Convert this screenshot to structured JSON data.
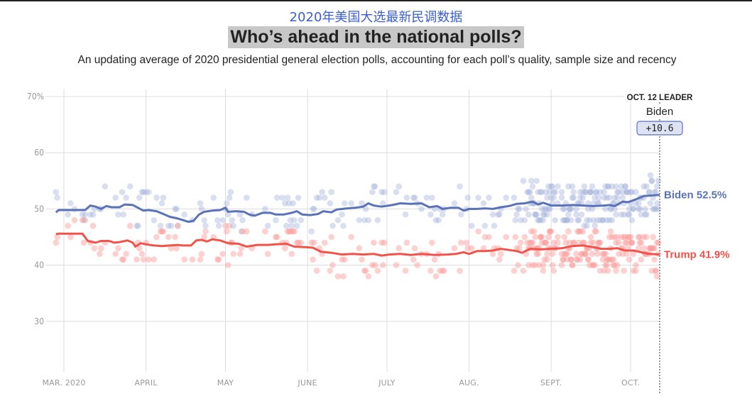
{
  "header": {
    "cn_title": "2020年美国大选最新民调数据",
    "title": "Who’s ahead in the national polls?",
    "subtitle": "An updating average of 2020 presidential general election polls, accounting for each poll’s quality, sample size and recency"
  },
  "colors": {
    "biden": "#5a72b8",
    "biden_dot": "#9fb0d9",
    "trump": "#f2524a",
    "trump_dot": "#fb9a96",
    "grid": "#dcdcdc",
    "cn_title": "#3a5fcd"
  },
  "leader": {
    "heading": "OCT. 12 LEADER",
    "name": "Biden",
    "margin": "+10.6"
  },
  "chart_data": {
    "type": "line",
    "title": "Who’s ahead in the national polls?",
    "xlabel": "",
    "ylabel": "",
    "ylim": [
      20,
      70
    ],
    "y_ticks": [
      {
        "value": 70,
        "label": "70%"
      },
      {
        "value": 60,
        "label": "60"
      },
      {
        "value": 50,
        "label": "50"
      },
      {
        "value": 40,
        "label": "40"
      },
      {
        "value": 30,
        "label": "30"
      }
    ],
    "x_range_days": [
      -3,
      225
    ],
    "x_ticks": [
      {
        "day": 0,
        "label": "MAR. 2020"
      },
      {
        "day": 31,
        "label": "APRIL"
      },
      {
        "day": 61,
        "label": "MAY"
      },
      {
        "day": 92,
        "label": "JUNE"
      },
      {
        "day": 122,
        "label": "JULY"
      },
      {
        "day": 153,
        "label": "AUG."
      },
      {
        "day": 184,
        "label": "SEPT."
      },
      {
        "day": 214,
        "label": "OCT."
      }
    ],
    "x_unit": "days since Mar. 1, 2020",
    "grid": true,
    "legend": "end-of-line labels (right)",
    "series": [
      {
        "name": "Biden",
        "end_label": "Biden 52.5%",
        "final_value": 52.5,
        "points": [
          [
            -3,
            49.4
          ],
          [
            -2,
            49.8
          ],
          [
            8,
            49.8
          ],
          [
            10,
            50.6
          ],
          [
            12,
            50.4
          ],
          [
            14,
            50.0
          ],
          [
            16,
            50.5
          ],
          [
            18,
            50.3
          ],
          [
            21,
            50.3
          ],
          [
            23,
            50.8
          ],
          [
            26,
            50.7
          ],
          [
            28,
            50.2
          ],
          [
            30,
            49.7
          ],
          [
            32,
            49.8
          ],
          [
            35,
            49.6
          ],
          [
            38,
            49.0
          ],
          [
            40,
            48.6
          ],
          [
            43,
            48.3
          ],
          [
            45,
            48.0
          ],
          [
            47,
            47.7
          ],
          [
            49,
            47.9
          ],
          [
            51,
            49.0
          ],
          [
            53,
            49.5
          ],
          [
            56,
            49.7
          ],
          [
            59,
            49.8
          ],
          [
            61,
            50.2
          ],
          [
            62,
            49.5
          ],
          [
            65,
            49.6
          ],
          [
            68,
            49.5
          ],
          [
            70,
            49.0
          ],
          [
            72,
            48.8
          ],
          [
            75,
            49.3
          ],
          [
            78,
            49.3
          ],
          [
            80,
            49.0
          ],
          [
            83,
            49.0
          ],
          [
            86,
            49.3
          ],
          [
            88,
            49.6
          ],
          [
            90,
            49.0
          ],
          [
            93,
            48.9
          ],
          [
            96,
            49.1
          ],
          [
            98,
            49.6
          ],
          [
            101,
            49.4
          ],
          [
            103,
            49.9
          ],
          [
            107,
            50.1
          ],
          [
            110,
            50.2
          ],
          [
            113,
            50.4
          ],
          [
            115,
            51.0
          ],
          [
            117,
            50.6
          ],
          [
            120,
            50.4
          ],
          [
            124,
            50.7
          ],
          [
            127,
            51.0
          ],
          [
            131,
            50.9
          ],
          [
            135,
            51.0
          ],
          [
            138,
            50.3
          ],
          [
            141,
            50.5
          ],
          [
            143,
            50.0
          ],
          [
            146,
            50.2
          ],
          [
            149,
            50.2
          ],
          [
            151,
            49.7
          ],
          [
            153,
            50.0
          ],
          [
            156,
            50.0
          ],
          [
            159,
            50.1
          ],
          [
            162,
            50.0
          ],
          [
            165,
            50.3
          ],
          [
            168,
            50.5
          ],
          [
            171,
            50.9
          ],
          [
            174,
            51.0
          ],
          [
            177,
            51.3
          ],
          [
            179,
            50.8
          ],
          [
            181,
            51.1
          ],
          [
            184,
            50.6
          ],
          [
            188,
            50.6
          ],
          [
            192,
            50.7
          ],
          [
            196,
            50.6
          ],
          [
            200,
            50.5
          ],
          [
            204,
            50.6
          ],
          [
            206,
            50.7
          ],
          [
            208,
            50.5
          ],
          [
            211,
            51.3
          ],
          [
            213,
            51.2
          ],
          [
            216,
            51.7
          ],
          [
            219,
            52.3
          ],
          [
            222,
            52.4
          ],
          [
            225,
            52.5
          ]
        ]
      },
      {
        "name": "Trump",
        "end_label": "Trump 41.9%",
        "final_value": 41.9,
        "points": [
          [
            -3,
            45.5
          ],
          [
            -2,
            45.6
          ],
          [
            7,
            45.6
          ],
          [
            9,
            44.3
          ],
          [
            12,
            44.0
          ],
          [
            14,
            44.3
          ],
          [
            17,
            44.3
          ],
          [
            19,
            44.0
          ],
          [
            21,
            44.1
          ],
          [
            24,
            44.4
          ],
          [
            26,
            44.0
          ],
          [
            27,
            43.3
          ],
          [
            29,
            43.9
          ],
          [
            31,
            43.7
          ],
          [
            34,
            43.5
          ],
          [
            37,
            43.4
          ],
          [
            40,
            43.5
          ],
          [
            43,
            43.6
          ],
          [
            45,
            43.5
          ],
          [
            48,
            43.5
          ],
          [
            50,
            44.4
          ],
          [
            52,
            44.5
          ],
          [
            54,
            44.2
          ],
          [
            56,
            44.6
          ],
          [
            59,
            44.4
          ],
          [
            62,
            43.9
          ],
          [
            66,
            43.8
          ],
          [
            69,
            43.3
          ],
          [
            73,
            43.6
          ],
          [
            77,
            43.6
          ],
          [
            80,
            43.7
          ],
          [
            84,
            43.8
          ],
          [
            87,
            43.3
          ],
          [
            91,
            43.2
          ],
          [
            94,
            43.1
          ],
          [
            97,
            42.4
          ],
          [
            101,
            42.2
          ],
          [
            105,
            41.9
          ],
          [
            109,
            42.0
          ],
          [
            113,
            41.9
          ],
          [
            117,
            42.0
          ],
          [
            120,
            41.7
          ],
          [
            123,
            41.9
          ],
          [
            127,
            42.0
          ],
          [
            131,
            41.8
          ],
          [
            135,
            42.0
          ],
          [
            140,
            41.8
          ],
          [
            145,
            41.9
          ],
          [
            148,
            42.0
          ],
          [
            151,
            42.3
          ],
          [
            153,
            42.0
          ],
          [
            156,
            42.5
          ],
          [
            159,
            42.5
          ],
          [
            162,
            42.6
          ],
          [
            165,
            42.9
          ],
          [
            168,
            42.7
          ],
          [
            171,
            42.5
          ],
          [
            173,
            42.2
          ],
          [
            176,
            42.9
          ],
          [
            180,
            42.8
          ],
          [
            184,
            42.9
          ],
          [
            188,
            43.0
          ],
          [
            192,
            43.4
          ],
          [
            196,
            43.5
          ],
          [
            200,
            43.2
          ],
          [
            203,
            42.9
          ],
          [
            206,
            42.9
          ],
          [
            209,
            43.0
          ],
          [
            212,
            42.6
          ],
          [
            215,
            42.6
          ],
          [
            218,
            42.3
          ],
          [
            221,
            42.0
          ],
          [
            225,
            41.9
          ]
        ]
      }
    ],
    "poll_dots": {
      "note": "individual poll results, approximate",
      "biden_range": [
        45,
        57
      ],
      "trump_range": [
        32,
        48
      ]
    },
    "annotation": {
      "day": 225,
      "label": "OCT. 12 LEADER",
      "leader": "Biden",
      "margin": "+10.6"
    }
  }
}
